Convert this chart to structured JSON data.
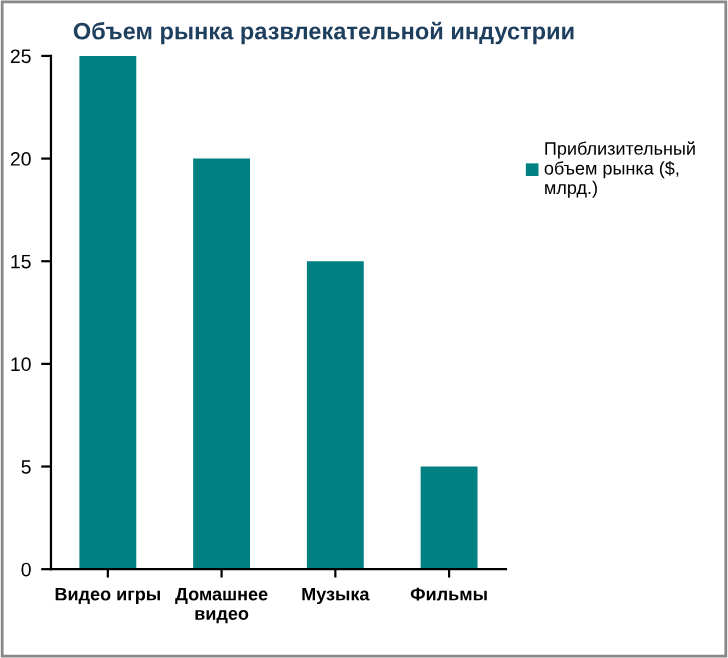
{
  "chart_data": {
    "type": "bar",
    "title": "Объем рынка развлекательной индустрии",
    "categories": [
      "Видео игры",
      "Домашнее видео",
      "Музыка",
      "Фильмы"
    ],
    "series": [
      {
        "name": "Приблизительный объем рынка ($, млрд.)",
        "color": "#008080",
        "values": [
          25,
          20,
          15,
          5
        ]
      }
    ],
    "ylim": [
      0,
      25
    ],
    "yticks": [
      0,
      5,
      10,
      15,
      20,
      25
    ],
    "grid": false,
    "legend": "right"
  }
}
